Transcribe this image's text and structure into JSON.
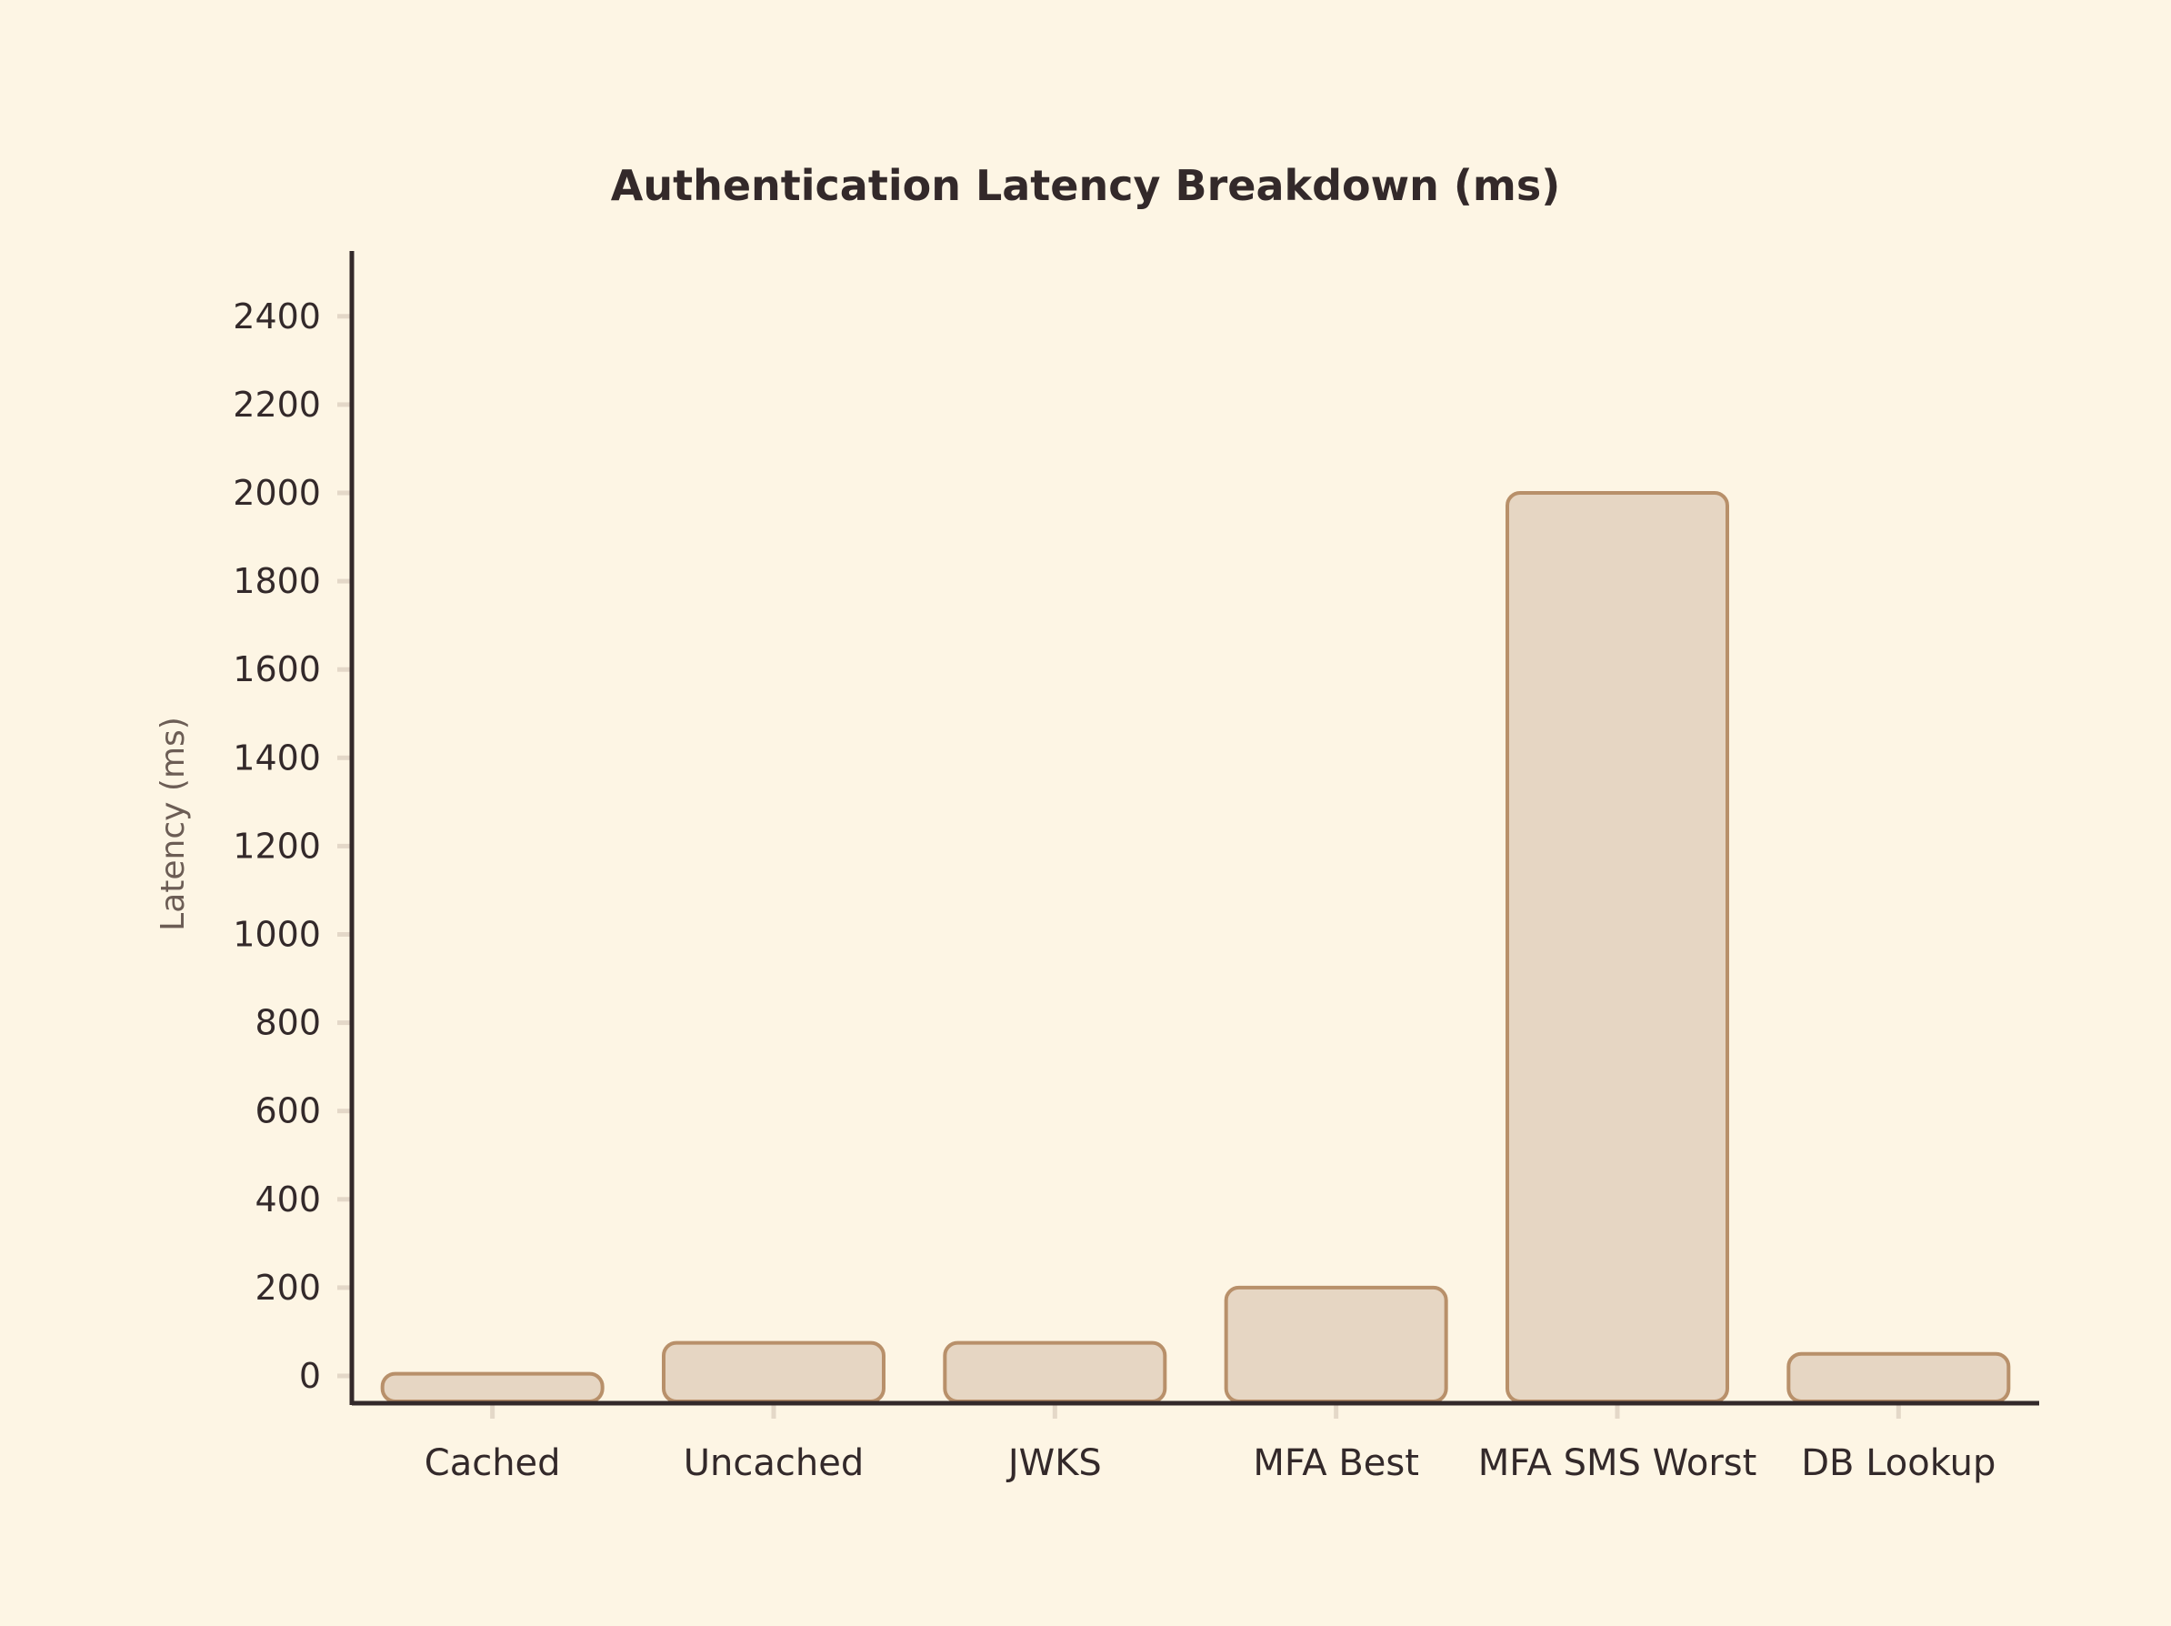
{
  "chart_data": {
    "type": "bar",
    "title": "Authentication Latency Breakdown (ms)",
    "xlabel": "",
    "ylabel": "Latency (ms)",
    "categories": [
      "Cached",
      "Uncached",
      "JWKS",
      "MFA Best",
      "MFA SMS Worst",
      "DB Lookup"
    ],
    "values": [
      5,
      75,
      75,
      200,
      2000,
      50
    ],
    "ylim": [
      0,
      2500
    ],
    "yticks": [
      0,
      200,
      400,
      600,
      800,
      1000,
      1200,
      1400,
      1600,
      1800,
      2000,
      2200,
      2400
    ],
    "ytick_labels": [
      "0",
      "200",
      "400",
      "600",
      "800",
      "1000",
      "1200",
      "1400",
      "1600",
      "1800",
      "2000",
      "2200",
      "2400"
    ],
    "grid": false,
    "legend": "none",
    "colors": {
      "background": "#fdf5e4",
      "bar_fill": "#e6d6c3",
      "bar_stroke": "#b8906a",
      "axis": "#33292a",
      "tick": "#e4d8c8",
      "text": "#33292a",
      "ylabel_text": "#6c5d55"
    }
  }
}
